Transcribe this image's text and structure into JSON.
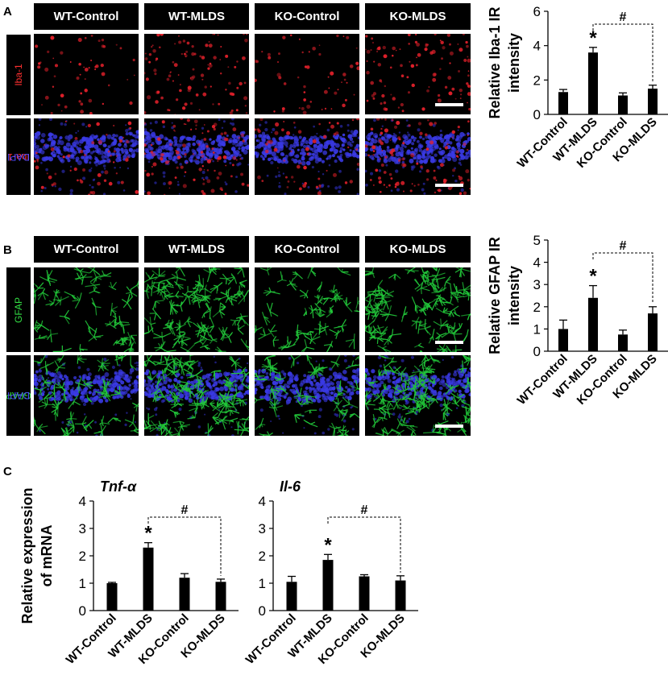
{
  "panels": {
    "A": {
      "letter": "A",
      "columns": [
        "WT-Control",
        "WT-MLDS",
        "KO-Control",
        "KO-MLDS"
      ],
      "row1": {
        "label": "Iba-1"
      },
      "row2": {
        "label1": "Iba-1",
        "label2": "DAPI"
      },
      "colors": {
        "marker": "#e0202a",
        "dapi": "#3a3ae6",
        "label_red": "#ff3030",
        "label_blue": "#4a4aff"
      }
    },
    "B": {
      "letter": "B",
      "columns": [
        "WT-Control",
        "WT-MLDS",
        "KO-Control",
        "KO-MLDS"
      ],
      "row1": {
        "label": "GFAP"
      },
      "row2": {
        "label1": "GFAP",
        "label2": "DAPI"
      },
      "colors": {
        "marker": "#22c83a",
        "dapi": "#3a3ae6",
        "label_green": "#33dd44",
        "label_blue": "#4a4aff"
      }
    },
    "C": {
      "letter": "C"
    }
  },
  "chart_data": [
    {
      "type": "bar",
      "panel": "A",
      "categories": [
        "WT-Control",
        "WT-MLDS",
        "KO-Control",
        "KO-MLDS"
      ],
      "values": [
        1.3,
        3.6,
        1.1,
        1.5
      ],
      "errors": [
        0.15,
        0.3,
        0.15,
        0.2
      ],
      "ylabel": "Relative Iba-1 IR intensity",
      "ylabel_lines": [
        "Relative Iba-1 IR",
        "intensity"
      ],
      "ylim": [
        0,
        6
      ],
      "yticks": [
        0,
        2,
        4,
        6
      ],
      "star": {
        "on": 1,
        "text": "*"
      },
      "bracket": {
        "from": 1,
        "to": 3,
        "text": "#"
      }
    },
    {
      "type": "bar",
      "panel": "B",
      "categories": [
        "WT-Control",
        "WT-MLDS",
        "KO-Control",
        "KO-MLDS"
      ],
      "values": [
        1.0,
        2.4,
        0.75,
        1.7
      ],
      "errors": [
        0.4,
        0.55,
        0.2,
        0.3
      ],
      "ylabel": "Relative GFAP IR intensity",
      "ylabel_lines": [
        "Relative GFAP IR",
        "intensity"
      ],
      "ylim": [
        0,
        5
      ],
      "yticks": [
        0,
        1,
        2,
        3,
        4,
        5
      ],
      "star": {
        "on": 1,
        "text": "*"
      },
      "bracket": {
        "from": 1,
        "to": 3,
        "text": "#"
      }
    },
    {
      "type": "bar",
      "panel": "C",
      "title": "Tnf-α",
      "categories": [
        "WT-Control",
        "WT-MLDS",
        "KO-Control",
        "KO-MLDS"
      ],
      "values": [
        1.0,
        2.3,
        1.2,
        1.05
      ],
      "errors": [
        0.03,
        0.18,
        0.15,
        0.1
      ],
      "ylabel": "Relative expression of mRNA",
      "ylabel_lines": [
        "Relative expression",
        "of mRNA"
      ],
      "ylim": [
        0,
        4
      ],
      "yticks": [
        0,
        1,
        2,
        3,
        4
      ],
      "star": {
        "on": 1,
        "text": "*"
      },
      "bracket": {
        "from": 1,
        "to": 3,
        "text": "#"
      }
    },
    {
      "type": "bar",
      "panel": "C",
      "title": "Il-6",
      "categories": [
        "WT-Control",
        "WT-MLDS",
        "KO-Control",
        "KO-MLDS"
      ],
      "values": [
        1.05,
        1.85,
        1.25,
        1.1
      ],
      "errors": [
        0.2,
        0.2,
        0.06,
        0.17
      ],
      "ylim": [
        0,
        4
      ],
      "yticks": [
        0,
        1,
        2,
        3,
        4
      ],
      "star": {
        "on": 1,
        "text": "*"
      },
      "bracket": {
        "from": 1,
        "to": 3,
        "text": "#"
      }
    }
  ]
}
